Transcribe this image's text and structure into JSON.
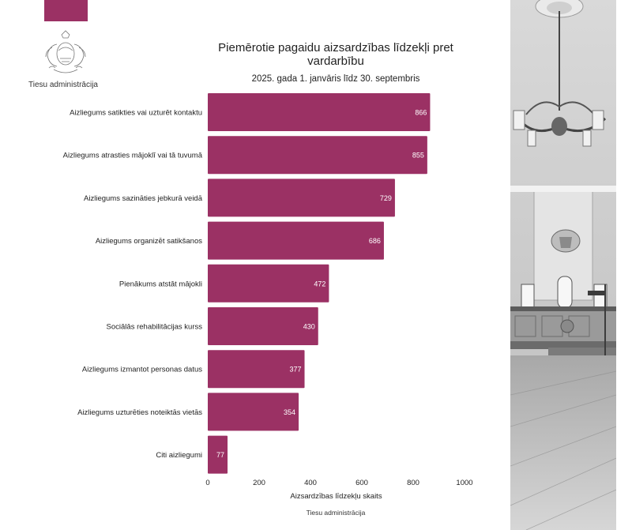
{
  "org": {
    "name": "Tiesu administrācija"
  },
  "chart_data": {
    "type": "bar",
    "orientation": "horizontal",
    "title": "Piemērotie pagaidu aizsardzības līdzekļi pret vardarbību",
    "subtitle": "2025. gada 1. janvāris līdz 30. septembris",
    "categories": [
      "Aizliegums satikties vai uzturēt kontaktu",
      "Aizliegums atrasties mājoklī vai tā tuvumā",
      "Aizliegums sazināties jebkurā veidā",
      "Aizliegums organizēt satikšanos",
      "Pienākums atstāt mājokli",
      "Sociālās rehabilitācijas kurss",
      "Aizliegums izmantot personas datus",
      "Aizliegums uzturēties noteiktās vietās",
      "Citi aizliegumi"
    ],
    "values": [
      866,
      855,
      729,
      686,
      472,
      430,
      377,
      354,
      77
    ],
    "xlabel": "Aizsardzības līdzekļu skaits",
    "xlim": [
      0,
      1000
    ],
    "xticks": [
      0,
      200,
      400,
      600,
      800,
      1000
    ],
    "grid": false,
    "bar_color": "#9b3164",
    "source": "Tiesu administrācija"
  }
}
